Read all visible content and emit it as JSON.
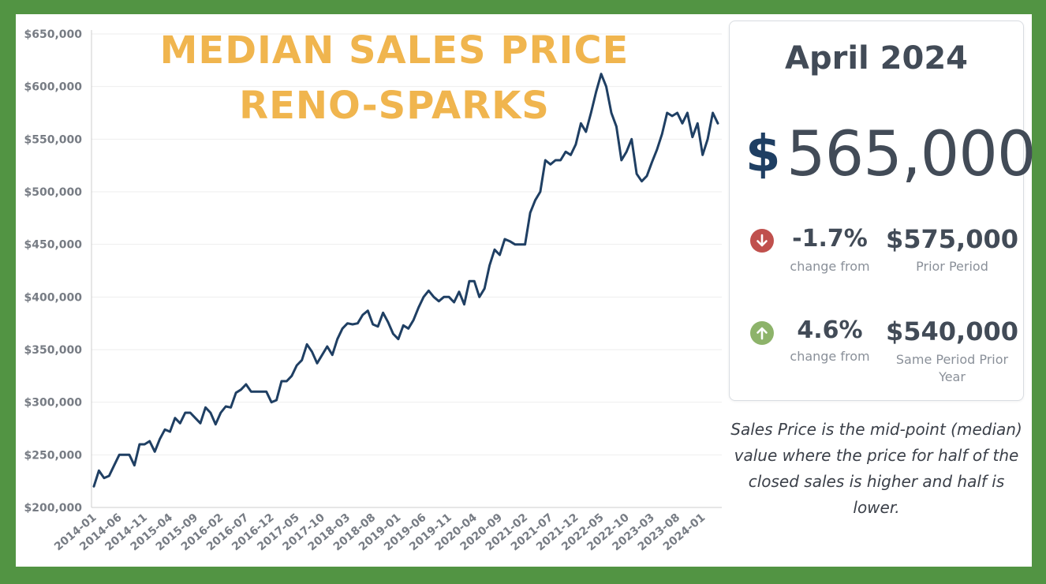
{
  "title_line1": "MEDIAN SALES PRICE",
  "title_line2": "RENO-SPARKS",
  "card": {
    "month": "April 2024",
    "currency_symbol": "$",
    "price": "565,000",
    "mom": {
      "direction": "down",
      "percent": "-1.7%",
      "label": "change from",
      "value": "$575,000",
      "value_label": "Prior Period"
    },
    "yoy": {
      "direction": "up",
      "percent": "4.6%",
      "label": "change from",
      "value": "$540,000",
      "value_label": "Same Period Prior Year"
    }
  },
  "note": "Sales Price is the mid-point (median) value where the price for half of the closed sales is higher and half is lower.",
  "colors": {
    "line": "#1f3f63",
    "title": "#f0b54e",
    "border": "#529443",
    "down": "#c0504d",
    "up": "#8db36a"
  },
  "chart_data": {
    "type": "line",
    "title": "",
    "xlabel": "",
    "ylabel": "",
    "ylim": [
      200000,
      650000
    ],
    "yticks": [
      200000,
      250000,
      300000,
      350000,
      400000,
      450000,
      500000,
      550000,
      600000,
      650000
    ],
    "ytick_labels": [
      "$200,000",
      "$250,000",
      "$300,000",
      "$350,000",
      "$400,000",
      "$450,000",
      "$500,000",
      "$550,000",
      "$600,000",
      "$650,000"
    ],
    "xtick_labels": [
      "2014-01",
      "2014-06",
      "2014-11",
      "2015-04",
      "2015-09",
      "2016-02",
      "2016-07",
      "2016-12",
      "2017-05",
      "2017-10",
      "2018-03",
      "2018-08",
      "2019-01",
      "2019-06",
      "2019-11",
      "2020-04",
      "2020-09",
      "2021-02",
      "2021-07",
      "2021-12",
      "2022-05",
      "2022-10",
      "2023-03",
      "2023-08",
      "2024-01"
    ],
    "grid": true,
    "x_start": "2014-01",
    "x_end": "2024-04",
    "series": [
      {
        "values": [
          220000,
          235000,
          228000,
          230000,
          240000,
          250000,
          250000,
          250000,
          240000,
          260000,
          260000,
          263000,
          253000,
          265000,
          274000,
          272000,
          285000,
          280000,
          290000,
          290000,
          285000,
          280000,
          295000,
          290000,
          279000,
          290000,
          296000,
          295000,
          309000,
          312000,
          317000,
          310000,
          310000,
          310000,
          310000,
          300000,
          302000,
          320000,
          320000,
          325000,
          335000,
          340000,
          355000,
          348000,
          337000,
          345000,
          353000,
          345000,
          360000,
          370000,
          375000,
          374000,
          375000,
          383000,
          387000,
          374000,
          372000,
          385000,
          376000,
          365000,
          360000,
          373000,
          370000,
          378000,
          390000,
          400000,
          406000,
          400000,
          396000,
          400000,
          400000,
          395000,
          405000,
          393000,
          415000,
          415000,
          400000,
          408000,
          430000,
          445000,
          440000,
          455000,
          453000,
          450000,
          450000,
          450000,
          480000,
          492000,
          500000,
          530000,
          526000,
          530000,
          530000,
          538000,
          535000,
          545000,
          565000,
          557000,
          575000,
          595000,
          612000,
          600000,
          575000,
          562000,
          530000,
          538000,
          550000,
          517000,
          510000,
          515000,
          528000,
          540000,
          555000,
          575000,
          572000,
          575000,
          565000,
          575000,
          552000,
          565000,
          535000,
          550000,
          575000,
          565000
        ]
      }
    ]
  }
}
